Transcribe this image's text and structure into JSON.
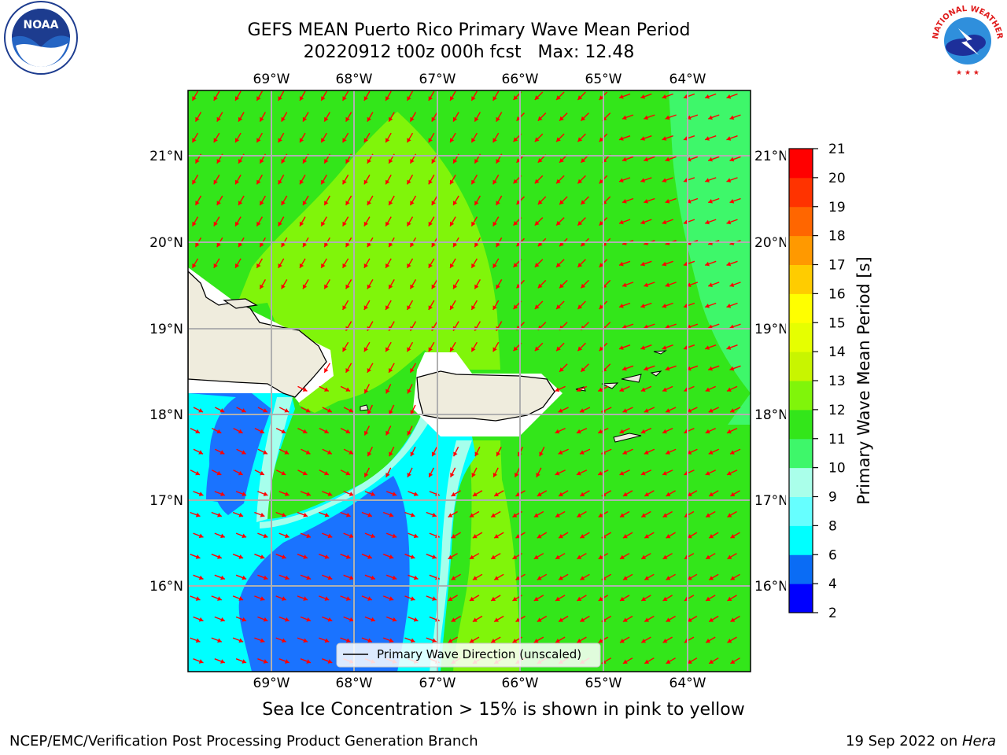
{
  "title": {
    "line1": "GEFS MEAN Puerto Rico Primary Wave Mean Period",
    "line2": "20220912 t00z 000h fcst   Max: 12.48"
  },
  "map": {
    "lon_labels": [
      "69°W",
      "68°W",
      "67°W",
      "66°W",
      "65°W",
      "64°W"
    ],
    "lat_labels": [
      "21°N",
      "20°N",
      "19°N",
      "18°N",
      "17°N",
      "16°N"
    ],
    "legend_label": "Primary Wave Direction (unscaled)",
    "ocean_colors": {
      "green": "#33e61a",
      "light_green": "#80f50a",
      "cyan": "#00ffff",
      "blue": "#1a73ff",
      "pale_cyan": "#a6ffec",
      "aqua_green": "#3af773"
    },
    "land_color": "#efecdd",
    "arrow_color": "#ff0000"
  },
  "colorbar": {
    "title": "Primary Wave Mean Period [s]",
    "ticks": [
      "2",
      "4",
      "6",
      "8",
      "9",
      "10",
      "11",
      "12",
      "13",
      "14",
      "15",
      "16",
      "17",
      "18",
      "19",
      "20",
      "21"
    ],
    "bands": [
      {
        "from": 2,
        "to": 4,
        "color": "#0000ff"
      },
      {
        "from": 4,
        "to": 6,
        "color": "#0a6cf5"
      },
      {
        "from": 6,
        "to": 8,
        "color": "#00ffff"
      },
      {
        "from": 8,
        "to": 9,
        "color": "#66ffff"
      },
      {
        "from": 9,
        "to": 10,
        "color": "#aaffea"
      },
      {
        "from": 10,
        "to": 11,
        "color": "#3ef76a"
      },
      {
        "from": 11,
        "to": 12,
        "color": "#33e61a"
      },
      {
        "from": 12,
        "to": 13,
        "color": "#80f50a"
      },
      {
        "from": 13,
        "to": 14,
        "color": "#c8f500"
      },
      {
        "from": 14,
        "to": 15,
        "color": "#e6ff00"
      },
      {
        "from": 15,
        "to": 16,
        "color": "#ffff00"
      },
      {
        "from": 16,
        "to": 17,
        "color": "#ffcc00"
      },
      {
        "from": 17,
        "to": 18,
        "color": "#ff9900"
      },
      {
        "from": 18,
        "to": 19,
        "color": "#ff6600"
      },
      {
        "from": 19,
        "to": 20,
        "color": "#ff3300"
      },
      {
        "from": 20,
        "to": 21,
        "color": "#ff0000"
      }
    ]
  },
  "footer": {
    "note": "Sea Ice Concentration > 15% is shown in pink to yellow",
    "credit_left": "NCEP/EMC/Verification Post Processing Product Generation Branch",
    "credit_right_date": "19 Sep 2022 on ",
    "credit_right_machine": "Hera"
  },
  "logos": {
    "noaa_text": "NOAA",
    "nws_text": "NATIONAL WEATHER SERVICE"
  }
}
